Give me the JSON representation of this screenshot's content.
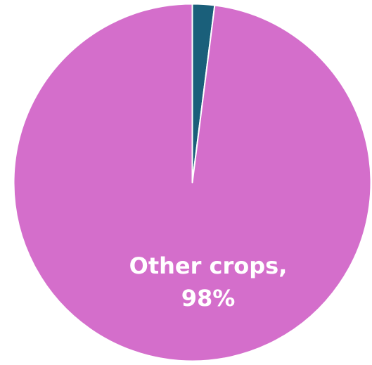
{
  "chart_data": {
    "type": "pie",
    "title": "",
    "slices": [
      {
        "label": "",
        "value": 2,
        "color": "#1a5f7a"
      },
      {
        "label": "Other crops",
        "value": 98,
        "color": "#d46ecb"
      }
    ],
    "data_labels": [
      {
        "line1": "",
        "line2": ""
      },
      {
        "line1": "Other crops,",
        "line2": "98%"
      }
    ],
    "legend": "none",
    "start_angle": "12 o'clock, clockwise"
  }
}
